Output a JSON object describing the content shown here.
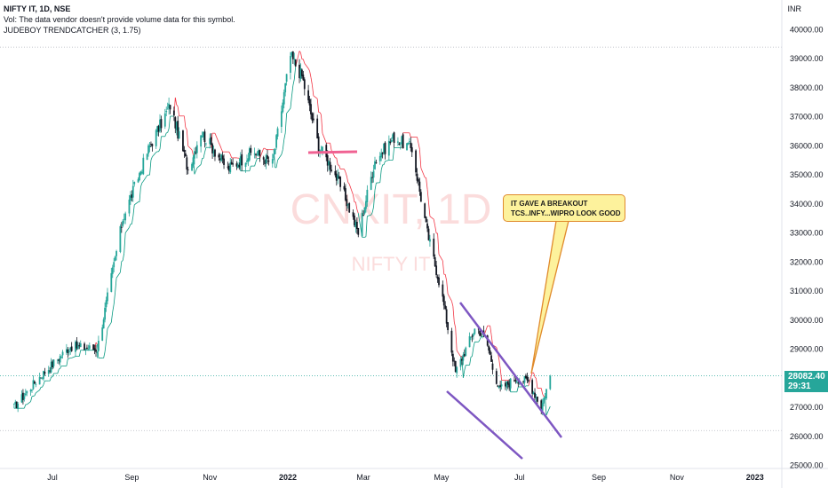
{
  "header": {
    "symbol_line": "NIFTY IT, 1D, NSE",
    "volume_note": "Vol: The data vendor doesn't provide volume data for this symbol.",
    "indicator": "JUDEBOY TRENDCATCHER (3, 1.75)"
  },
  "currency": "INR",
  "watermark": {
    "ticker": "CNXIT, 1D",
    "name": "NIFTY IT"
  },
  "price_badge": {
    "price": "28082.40",
    "countdown": "29:31",
    "color": "#26a69a"
  },
  "annotation": {
    "line1": "IT GAVE A BREAKOUT",
    "line2": "TCS..INFY...WIPRO LOOK GOOD"
  },
  "colors": {
    "up": "#26a69a",
    "down": "#131722",
    "trail_red": "#f23645",
    "trail_green": "#089981",
    "channel": "#7e57c2",
    "flat_line": "#f06292"
  },
  "chart_data": {
    "type": "candlestick",
    "x_ticks": [
      "Jul",
      "Sep",
      "Nov",
      "2022",
      "Mar",
      "May",
      "Jul",
      "Sep",
      "Nov",
      "2023"
    ],
    "y_ticks": [
      "25000.00",
      "26000.00",
      "27000.00",
      "28000.00",
      "29000.00",
      "30000.00",
      "31000.00",
      "32000.00",
      "33000.00",
      "34000.00",
      "35000.00",
      "36000.00",
      "37000.00",
      "38000.00",
      "39000.00",
      "40000.00"
    ],
    "ylim": [
      24900,
      40300
    ],
    "last_price": 28082.4,
    "series": [
      {
        "date": "2021-06-01",
        "close": 27000
      },
      {
        "date": "2021-06-20",
        "close": 28000
      },
      {
        "date": "2021-07-15",
        "close": 29100
      },
      {
        "date": "2021-08-05",
        "close": 29000
      },
      {
        "date": "2021-08-25",
        "close": 33500
      },
      {
        "date": "2021-09-15",
        "close": 36000
      },
      {
        "date": "2021-10-01",
        "close": 37400
      },
      {
        "date": "2021-10-15",
        "close": 35200
      },
      {
        "date": "2021-10-25",
        "close": 36500
      },
      {
        "date": "2021-11-15",
        "close": 35200
      },
      {
        "date": "2021-12-05",
        "close": 35800
      },
      {
        "date": "2021-12-20",
        "close": 35400
      },
      {
        "date": "2022-01-03",
        "close": 39100
      },
      {
        "date": "2022-01-12",
        "close": 38400
      },
      {
        "date": "2022-01-25",
        "close": 36000
      },
      {
        "date": "2022-02-05",
        "close": 35200
      },
      {
        "date": "2022-02-15",
        "close": 34200
      },
      {
        "date": "2022-02-25",
        "close": 33000
      },
      {
        "date": "2022-03-10",
        "close": 35500
      },
      {
        "date": "2022-03-25",
        "close": 36300
      },
      {
        "date": "2022-04-08",
        "close": 35900
      },
      {
        "date": "2022-04-20",
        "close": 33000
      },
      {
        "date": "2022-05-01",
        "close": 31000
      },
      {
        "date": "2022-05-12",
        "close": 28200
      },
      {
        "date": "2022-05-28",
        "close": 29800
      },
      {
        "date": "2022-06-05",
        "close": 29300
      },
      {
        "date": "2022-06-15",
        "close": 27600
      },
      {
        "date": "2022-06-28",
        "close": 28000
      },
      {
        "date": "2022-07-08",
        "close": 27900
      },
      {
        "date": "2022-07-18",
        "close": 27000
      },
      {
        "date": "2022-07-25",
        "close": 28082.4
      }
    ]
  }
}
